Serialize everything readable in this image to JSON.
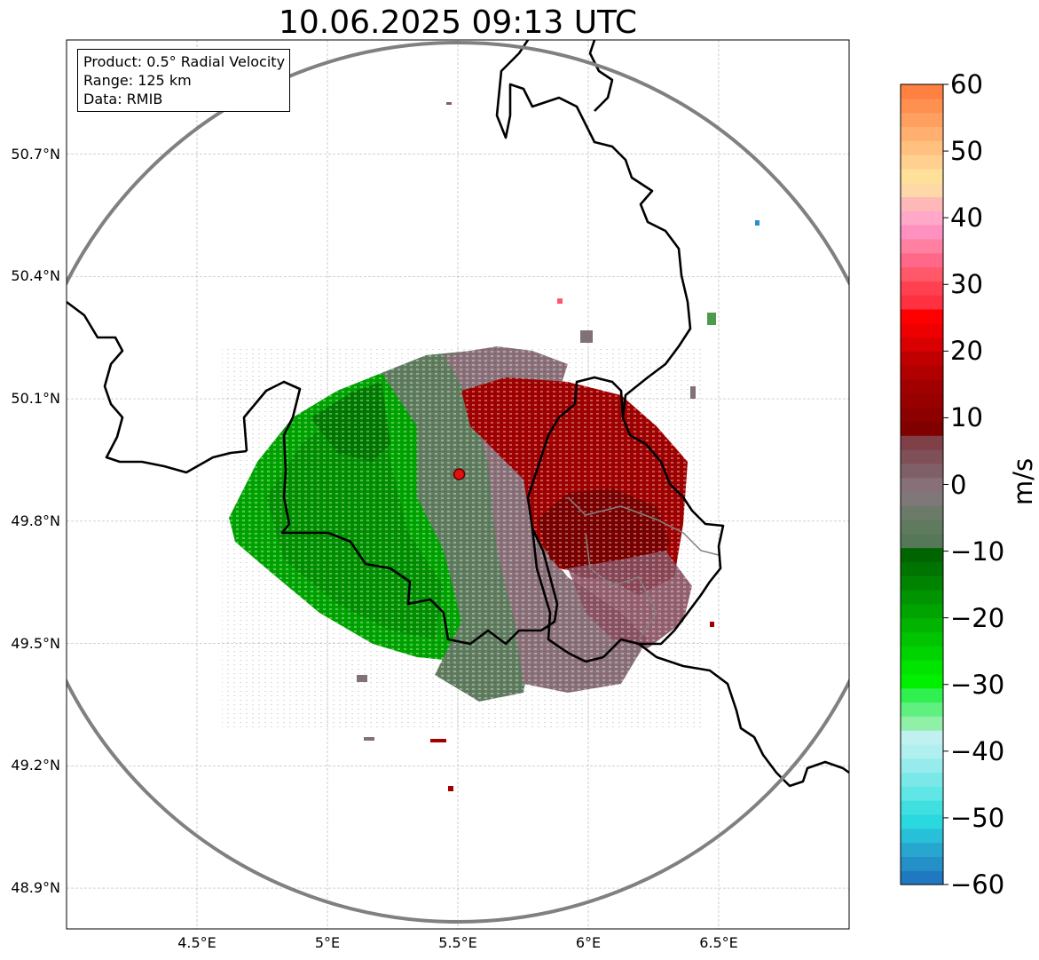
{
  "title": "10.06.2025 09:13 UTC",
  "info": {
    "product": "Product: 0.5° Radial Velocity",
    "range": "Range: 125 km",
    "source": "Data: RMIB"
  },
  "axes": {
    "lon_min": 4.0,
    "lon_max": 7.0,
    "lat_min": 48.8,
    "lat_max": 50.98,
    "lat_ticks": [
      {
        "value": 50.7,
        "label": "50.7°N"
      },
      {
        "value": 50.4,
        "label": "50.4°N"
      },
      {
        "value": 50.1,
        "label": "50.1°N"
      },
      {
        "value": 49.8,
        "label": "49.8°N"
      },
      {
        "value": 49.5,
        "label": "49.5°N"
      },
      {
        "value": 49.2,
        "label": "49.2°N"
      },
      {
        "value": 48.9,
        "label": "48.9°N"
      }
    ],
    "lon_ticks": [
      {
        "value": 4.5,
        "label": "4.5°E"
      },
      {
        "value": 5.0,
        "label": "5°E"
      },
      {
        "value": 5.5,
        "label": "5.5°E"
      },
      {
        "value": 6.0,
        "label": "6°E"
      },
      {
        "value": 6.5,
        "label": "6.5°E"
      }
    ]
  },
  "radar": {
    "lon": 5.505,
    "lat": 49.915,
    "range_km": 125
  },
  "colorbar": {
    "unit": "m/s",
    "min": -60,
    "max": 60,
    "ticks": [
      {
        "value": 60,
        "label": "60"
      },
      {
        "value": 50,
        "label": "50"
      },
      {
        "value": 40,
        "label": "40"
      },
      {
        "value": 30,
        "label": "30"
      },
      {
        "value": 20,
        "label": "20"
      },
      {
        "value": 10,
        "label": "10"
      },
      {
        "value": 0,
        "label": "0"
      },
      {
        "value": -10,
        "label": "−10"
      },
      {
        "value": -20,
        "label": "−20"
      },
      {
        "value": -30,
        "label": "−30"
      },
      {
        "value": -40,
        "label": "−40"
      },
      {
        "value": -50,
        "label": "−50"
      },
      {
        "value": -60,
        "label": "−60"
      }
    ],
    "colors": [
      "#1f78c0",
      "#2590c8",
      "#27a6d0",
      "#28c0d8",
      "#2ad8e0",
      "#40e0e0",
      "#60e6e6",
      "#7ae8e8",
      "#96ecec",
      "#b0eff0",
      "#c0f0f0",
      "#90f0a8",
      "#60f080",
      "#30f050",
      "#00f000",
      "#00e400",
      "#00d400",
      "#00c400",
      "#00b400",
      "#00a400",
      "#009400",
      "#008400",
      "#007400",
      "#006400",
      "#547858",
      "#607a60",
      "#6c7a68",
      "#807878",
      "#887078",
      "#806068",
      "#805058",
      "#804048",
      "#800000",
      "#8c0000",
      "#980000",
      "#a00000",
      "#b00000",
      "#c00000",
      "#d80000",
      "#ef0000",
      "#ff0000",
      "#ff3040",
      "#ff4050",
      "#ff5868",
      "#ff6888",
      "#ff80a0",
      "#ff90c0",
      "#ffa8c8",
      "#ffb8b8",
      "#ffd8a8",
      "#ffe098",
      "#ffd090",
      "#ffc080",
      "#ffb070",
      "#ffa060",
      "#ff9050",
      "#ff8040"
    ]
  },
  "map_colors": {
    "negative_strong": "#009000",
    "negative_mid": "#00b000",
    "negative_weak": "#5f7c5f",
    "near_zero": "#8a7078",
    "positive_mid": "#a00000",
    "positive_strong": "#7a0000",
    "border": "#000000",
    "range_ring": "#808080"
  }
}
